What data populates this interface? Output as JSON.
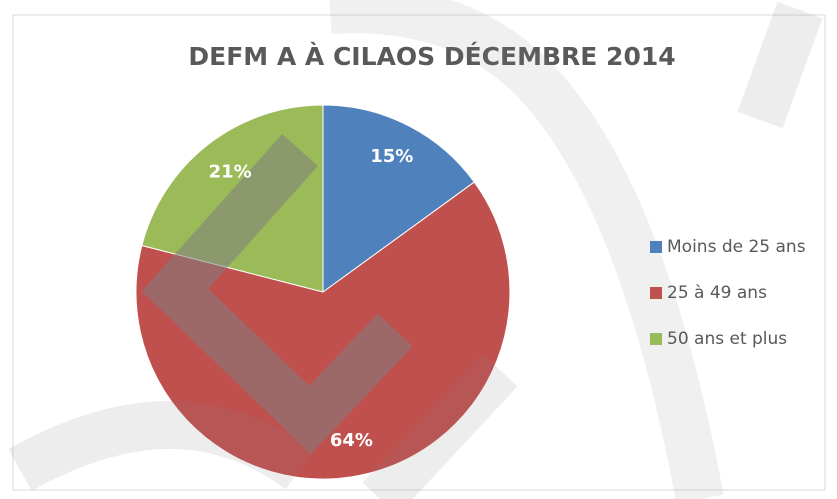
{
  "chart_data": {
    "type": "pie",
    "title": "DEFM A À CILAOS DÉCEMBRE 2014",
    "categories": [
      "Moins de 25 ans",
      "25 à 49 ans",
      "50 ans et plus"
    ],
    "values": [
      15,
      64,
      21
    ],
    "value_labels": [
      "15%",
      "64%",
      "21%"
    ],
    "colors": [
      "#4f81bd",
      "#c0504d",
      "#9bbb59"
    ],
    "legend": "right"
  }
}
